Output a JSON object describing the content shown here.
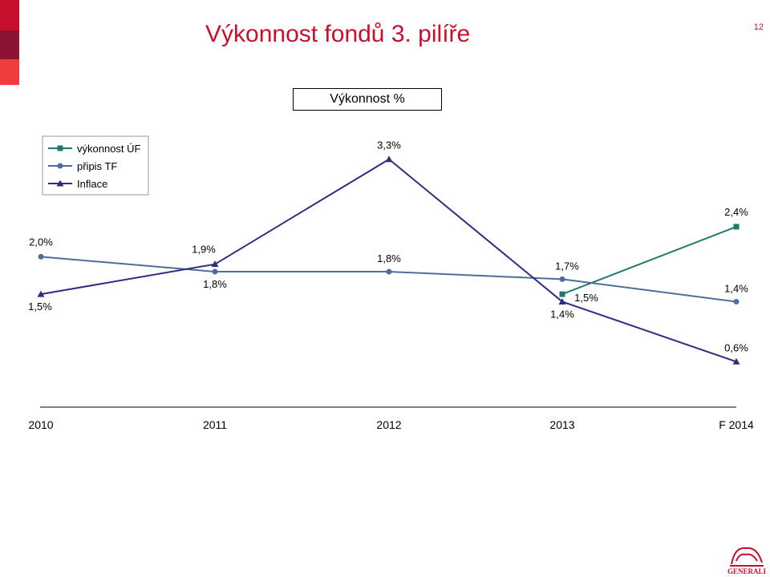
{
  "page": {
    "title": "Výkonnost fondů 3. pilíře",
    "page_number": "12",
    "brand": "GENERALI",
    "accent_colors": [
      "#c8102e",
      "#8c1432",
      "#f03c3c"
    ],
    "brand_color": "#c8102e"
  },
  "chart_data": {
    "type": "line",
    "title": "Výkonnost %",
    "categories": [
      "2010",
      "2011",
      "2012",
      "2013",
      "F 2014"
    ],
    "grid": false,
    "legend_position": "top-left",
    "ylim": [
      0.4,
      3.5
    ],
    "series": [
      {
        "name": "výkonnost ÚF",
        "color": "#1e7a6e",
        "marker": "square",
        "values": [
          null,
          null,
          null,
          1.5,
          2.4
        ],
        "labels": [
          null,
          null,
          null,
          "1,5%",
          "2,4%"
        ]
      },
      {
        "name": "připis TF",
        "color": "#4f6d9a",
        "marker": "circle",
        "values": [
          2.0,
          1.8,
          1.8,
          1.7,
          1.4
        ],
        "labels": [
          "2,0%",
          "1,8%",
          "1,8%",
          "1,7%",
          "1,4%"
        ]
      },
      {
        "name": "Inflace",
        "color": "#2e2e80",
        "marker": "triangle",
        "values": [
          1.5,
          1.9,
          3.3,
          1.4,
          0.6
        ],
        "labels": [
          "1,5%",
          "1,9%",
          "3,3%",
          "1,4%",
          "0,6%"
        ]
      }
    ]
  }
}
